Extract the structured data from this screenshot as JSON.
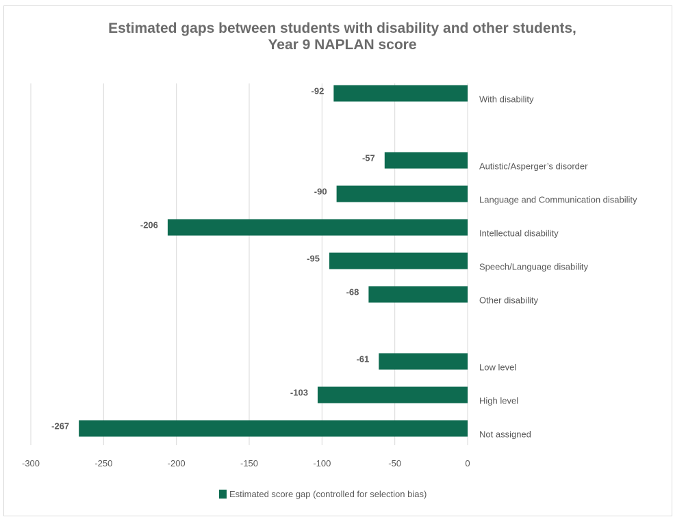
{
  "chart_data": {
    "type": "bar",
    "orientation": "horizontal",
    "title_lines": [
      "Estimated gaps between students with disability and other students,",
      "Year 9 NAPLAN score"
    ],
    "categories": [
      "With disability",
      "",
      "Autistic/Asperger’s disorder",
      "Language and Communication disability",
      "Intellectual disability",
      "Speech/Language disability",
      "Other disability",
      "",
      "Low level",
      "High level",
      "Not assigned"
    ],
    "series": [
      {
        "name": "Estimated score gap (controlled for selection bias)",
        "values": [
          -92,
          null,
          -57,
          -90,
          -206,
          -95,
          -68,
          null,
          -61,
          -103,
          -267
        ],
        "value_labels": [
          "-92",
          "",
          "-57",
          "-90",
          "-206",
          "-95",
          "-68",
          "",
          "-61",
          "-103",
          "-267"
        ]
      }
    ],
    "xlim": [
      -300,
      0
    ],
    "xticks": [
      -300,
      -250,
      -200,
      -150,
      -100,
      -50,
      0
    ],
    "xtick_labels": [
      "-300",
      "-250",
      "-200",
      "-150",
      "-100",
      "-50",
      "0"
    ],
    "grid": "vertical",
    "legend_position": "bottom",
    "colors": {
      "bar": "#0e6b50",
      "grid": "#d9d9d9",
      "text": "#595959",
      "title": "#6b6b6b"
    }
  }
}
